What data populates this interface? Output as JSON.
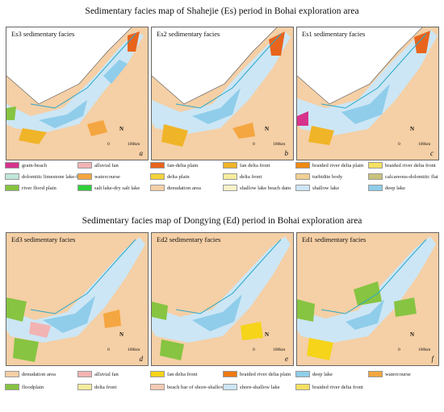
{
  "titles": {
    "top": "Sedimentary facies map of Shahejie (Es) period in Bohai exploration area",
    "bottom": "Sedimentary facies map of Dongying (Ed) period in Bohai exploration area"
  },
  "panels": [
    {
      "title": "Es3 sedimentary facies",
      "label": "a"
    },
    {
      "title": "Es2 sedimentary facies",
      "label": "b"
    },
    {
      "title": "Es1 sedimentary facies",
      "label": "c"
    },
    {
      "title": "Ed3 sedimentary facies",
      "label": "d"
    },
    {
      "title": "Ed2 sedimentary facies",
      "label": "e"
    },
    {
      "title": "Ed1 sedimentary facies",
      "label": "f"
    }
  ],
  "north_label": "N",
  "scale": {
    "zero": "0",
    "max": "100km"
  },
  "legend_es": [
    {
      "label": "grain-beach",
      "color": "#d6338c"
    },
    {
      "label": "alluvial fan",
      "color": "#f2b3b3"
    },
    {
      "label": "fan-delta plain",
      "color": "#e8641c"
    },
    {
      "label": "fan delta front",
      "color": "#f0b428"
    },
    {
      "label": "braided river delta plain",
      "color": "#ee8a12"
    },
    {
      "label": "braided river delta front",
      "color": "#f5e060"
    },
    {
      "label": "dolomitic limestone lake-bay",
      "color": "#bfe6d8"
    },
    {
      "label": "watercourse",
      "color": "#f4a640"
    },
    {
      "label": "delta plain",
      "color": "#f2d23a"
    },
    {
      "label": "delta front",
      "color": "#f6ec9c"
    },
    {
      "label": "turbidite body",
      "color": "#f1cf94"
    },
    {
      "label": "calcareous-dolomitic flat",
      "color": "#c9c27c"
    },
    {
      "label": "river flood plain",
      "color": "#86c441"
    },
    {
      "label": "salt lake-dry salt lake",
      "color": "#2fcf3a"
    },
    {
      "label": "denudation area",
      "color": "#f5cfa5"
    },
    {
      "label": "shallow lake beach dam",
      "color": "#f7f2c8"
    },
    {
      "label": "shallow lake",
      "color": "#cce6f5"
    },
    {
      "label": "deep lake",
      "color": "#8fcdea"
    }
  ],
  "legend_ed": [
    {
      "label": "denudation area",
      "color": "#f5cfa5"
    },
    {
      "label": "alluvial fan",
      "color": "#f2b3b3"
    },
    {
      "label": "fan delta front",
      "color": "#f5d41a"
    },
    {
      "label": "braided river delta plain",
      "color": "#ee7a12"
    },
    {
      "label": "deep lake",
      "color": "#8fcdea"
    },
    {
      "label": "watercourse",
      "color": "#f4a640"
    },
    {
      "label": "floodplain",
      "color": "#86c441"
    },
    {
      "label": "delta front",
      "color": "#f6ec9c"
    },
    {
      "label": "beach bar of shore-shallow lake",
      "color": "#f5c9b4"
    },
    {
      "label": "shore-shallow lake",
      "color": "#cce6f5"
    },
    {
      "label": "braided river delta front",
      "color": "#f5e060"
    }
  ]
}
